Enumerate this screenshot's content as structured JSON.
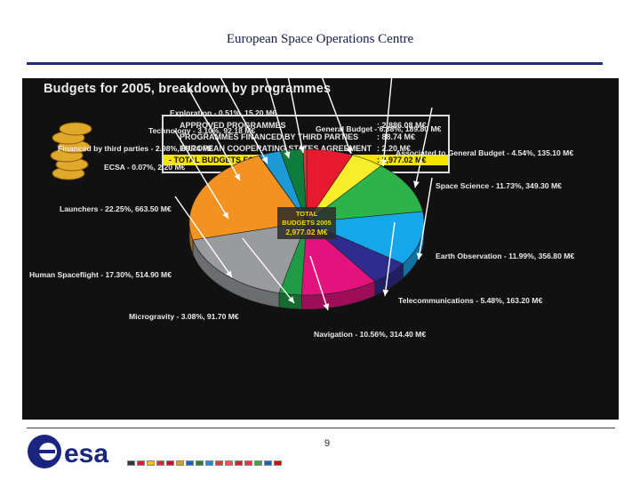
{
  "slide": {
    "title": "European Space Operations Centre",
    "page_number": "9",
    "logo_text": "esa"
  },
  "summary": {
    "rows": [
      {
        "label": "APPROVED PROGRAMMES",
        "value": ": 2,886.08 M€"
      },
      {
        "label": "PROGRAMMES FINANCED BY THIRD PARTIES",
        "value": ":     88.74 M€"
      },
      {
        "label": "EUROPEAN COOPERATING STATES AGREEMENT",
        "value": ":       2.20 M€"
      },
      {
        "label": "- TOTAL BUDGETS FOR 2005",
        "value": ": 2,977.02 M€"
      }
    ]
  },
  "chart_data": {
    "type": "pie",
    "title": "Budgets for 2005, breakdown by programmes",
    "center_label": [
      "TOTAL",
      "BUDGETS 2005",
      "2,977.02 M€"
    ],
    "unit": "M€",
    "slices": [
      {
        "name": "General Budget",
        "percent": 6.38,
        "value": 189.8,
        "label": "General Budget - 6.38%, 189.80 M€",
        "color": "#e8192c"
      },
      {
        "name": "Associated to General Budget",
        "percent": 4.54,
        "value": 135.1,
        "label": "Associated to General Budget - 4.54%, 135.10 M€",
        "color": "#f7ee2a"
      },
      {
        "name": "Space Science",
        "percent": 11.73,
        "value": 349.3,
        "label": "Space Science - 11.73%, 349.30 M€",
        "color": "#2cb34a"
      },
      {
        "name": "Earth Observation",
        "percent": 11.99,
        "value": 356.8,
        "label": "Earth Observation - 11.99%, 356.80 M€",
        "color": "#16a6ea"
      },
      {
        "name": "Telecommunications",
        "percent": 5.48,
        "value": 163.2,
        "label": "Telecommunications - 5.48%, 163.20 M€",
        "color": "#2e2d8f"
      },
      {
        "name": "Navigation",
        "percent": 10.56,
        "value": 314.4,
        "label": "Navigation - 10.56%, 314.40 M€",
        "color": "#e2137c"
      },
      {
        "name": "Microgravity",
        "percent": 3.08,
        "value": 91.7,
        "label": "Microgravity - 3.08%, 91.70 M€",
        "color": "#1f9a45"
      },
      {
        "name": "Human Spaceflight",
        "percent": 17.3,
        "value": 514.9,
        "label": "Human Spaceflight - 17.30%, 514.90 M€",
        "color": "#9a9b9e"
      },
      {
        "name": "Launchers",
        "percent": 22.25,
        "value": 663.5,
        "label": "Launchers - 22.25%, 663.50 M€",
        "color": "#f39220"
      },
      {
        "name": "ECSA",
        "percent": 0.07,
        "value": 2.2,
        "label": "ECSA - 0.07%, 2.20 M€",
        "color": "#b0b0b0"
      },
      {
        "name": "Financed by third parties",
        "percent": 2.98,
        "value": 88.74,
        "label": "Financed by third parties - 2.98%, 88.74 M€",
        "color": "#1c9ad6"
      },
      {
        "name": "Technology",
        "percent": 3.1,
        "value": 92.18,
        "label": "Technology - 3.10%, 92.18 M€",
        "color": "#0e7c3a"
      },
      {
        "name": "Exploration",
        "percent": 0.51,
        "value": 15.2,
        "label": "Exploration - 0.51%, 15.20 M€",
        "color": "#d63b3b"
      }
    ]
  },
  "flags": {
    "colors": [
      "#333333",
      "#e8192c",
      "#f2c400",
      "#d32f2f",
      "#c8102e",
      "#d7a21f",
      "#1565c0",
      "#2e7d32",
      "#1e88e5",
      "#e53935",
      "#ef5350",
      "#c62828",
      "#e53935",
      "#43a047",
      "#1565c0",
      "#d50000"
    ]
  }
}
